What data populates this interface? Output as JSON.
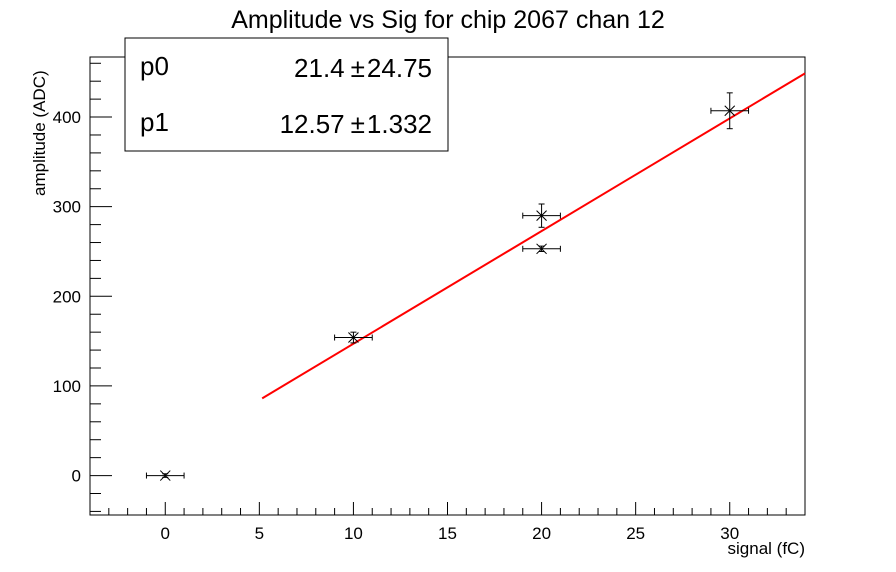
{
  "chart_data": {
    "type": "scatter",
    "title": "Amplitude vs Sig for chip 2067 chan 12",
    "xlabel": "signal (fC)",
    "ylabel": "amplitude (ADC)",
    "xlim": [
      -4.0,
      34.0
    ],
    "ylim": [
      -44.0,
      467.0
    ],
    "x_ticks": [
      0,
      5,
      10,
      15,
      20,
      25,
      30
    ],
    "y_ticks": [
      0,
      100,
      200,
      300,
      400
    ],
    "grid": false,
    "points": [
      {
        "x": 0,
        "y": 0,
        "xerr": 1,
        "yerr": 2
      },
      {
        "x": 10,
        "y": 154,
        "xerr": 1,
        "yerr": 6
      },
      {
        "x": 20,
        "y": 290,
        "xerr": 1,
        "yerr": 13
      },
      {
        "x": 20,
        "y": 253,
        "xerr": 1,
        "yerr": 3
      },
      {
        "x": 30,
        "y": 407,
        "xerr": 1,
        "yerr": 20
      }
    ],
    "fit": {
      "p0": 21.4,
      "p1": 12.57,
      "x_range": [
        5.15,
        34.0
      ],
      "color": "#ff0000"
    },
    "stats": [
      {
        "name": "p0",
        "value": "21.4",
        "error": "24.75"
      },
      {
        "name": "p1",
        "value": "12.57",
        "error": "1.332"
      }
    ],
    "stats_separator": "±"
  }
}
